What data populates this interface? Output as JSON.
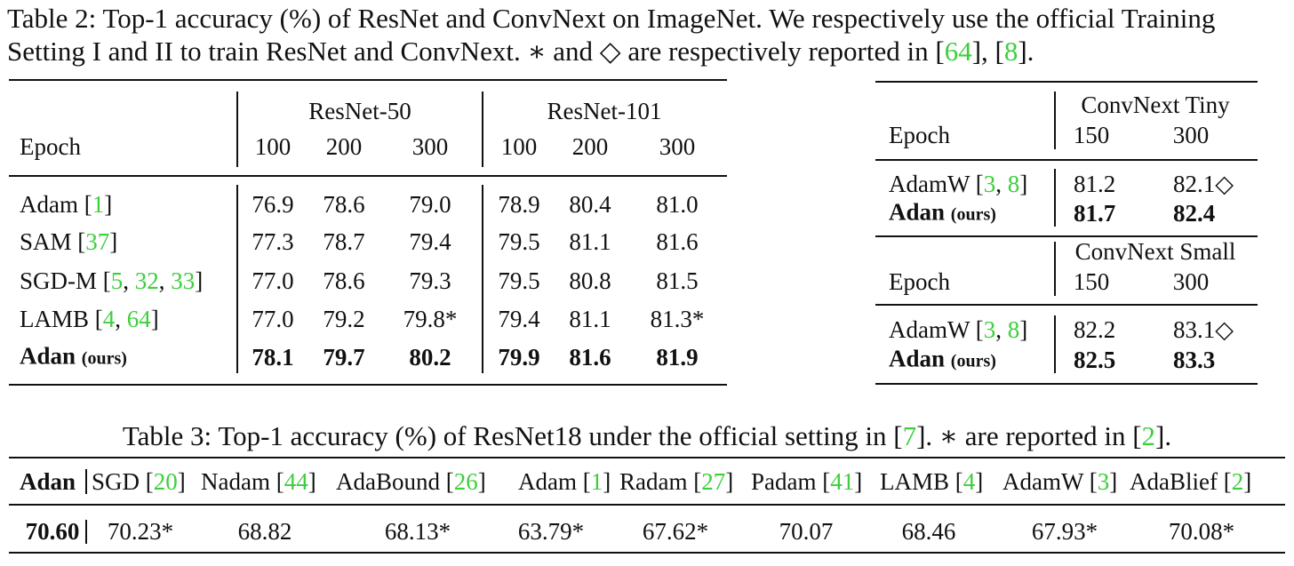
{
  "table2": {
    "caption": [
      {
        "text": "Table 2: Top-1 accuracy (%) of ResNet and ConvNext on ImageNet. We respectively use the official Training Setting I and II to train ResNet and ConvNext. ∗ and ◇ are respectively reported in ["
      },
      {
        "cite": "64"
      },
      {
        "text": "], ["
      },
      {
        "cite": "8"
      },
      {
        "text": "]."
      }
    ],
    "resnet": {
      "epoch_label": "Epoch",
      "groups": [
        {
          "name": "ResNet-50",
          "epochs": [
            "100",
            "200",
            "300"
          ]
        },
        {
          "name": "ResNet-101",
          "epochs": [
            "100",
            "200",
            "300"
          ]
        }
      ],
      "rows": [
        {
          "label": [
            {
              "text": "Adam ["
            },
            {
              "cite": "1"
            },
            {
              "text": "]"
            }
          ],
          "bold": false,
          "values": [
            "76.9",
            "78.6",
            "79.0",
            "78.9",
            "80.4",
            "81.0"
          ]
        },
        {
          "label": [
            {
              "text": "SAM ["
            },
            {
              "cite": "37"
            },
            {
              "text": "]"
            }
          ],
          "bold": false,
          "values": [
            "77.3",
            "78.7",
            "79.4",
            "79.5",
            "81.1",
            "81.6"
          ]
        },
        {
          "label": [
            {
              "text": "SGD-M ["
            },
            {
              "cite": "5"
            },
            {
              "text": ", "
            },
            {
              "cite": "32"
            },
            {
              "text": ", "
            },
            {
              "cite": "33"
            },
            {
              "text": "]"
            }
          ],
          "bold": false,
          "values": [
            "77.0",
            "78.6",
            "79.3",
            "79.5",
            "80.8",
            "81.5"
          ]
        },
        {
          "label": [
            {
              "text": "LAMB ["
            },
            {
              "cite": "4"
            },
            {
              "text": ", "
            },
            {
              "cite": "64"
            },
            {
              "text": "]"
            }
          ],
          "bold": false,
          "values": [
            "77.0",
            "79.2",
            "79.8*",
            "79.4",
            "81.1",
            "81.3*"
          ]
        },
        {
          "label": [
            {
              "text": "Adan "
            },
            {
              "small": "(ours)"
            }
          ],
          "bold": true,
          "values": [
            "78.1",
            "79.7",
            "80.2",
            "79.9",
            "81.6",
            "81.9"
          ]
        }
      ]
    },
    "convnext": {
      "blocks": [
        {
          "group": "ConvNext Tiny",
          "epoch_label": "Epoch",
          "epochs": [
            "150",
            "300"
          ],
          "rows": [
            {
              "label": [
                {
                  "text": "AdamW ["
                },
                {
                  "cite": "3"
                },
                {
                  "text": ", "
                },
                {
                  "cite": "8"
                },
                {
                  "text": "]"
                }
              ],
              "bold": false,
              "values": [
                "81.2",
                "82.1◇"
              ]
            },
            {
              "label": [
                {
                  "text": "Adan "
                },
                {
                  "small": "(ours)"
                }
              ],
              "bold": true,
              "values": [
                "81.7",
                "82.4"
              ]
            }
          ]
        },
        {
          "group": "ConvNext Small",
          "epoch_label": "Epoch",
          "epochs": [
            "150",
            "300"
          ],
          "rows": [
            {
              "label": [
                {
                  "text": "AdamW ["
                },
                {
                  "cite": "3"
                },
                {
                  "text": ", "
                },
                {
                  "cite": "8"
                },
                {
                  "text": "]"
                }
              ],
              "bold": false,
              "values": [
                "82.2",
                "83.1◇"
              ]
            },
            {
              "label": [
                {
                  "text": "Adan "
                },
                {
                  "small": "(ours)"
                }
              ],
              "bold": true,
              "values": [
                "82.5",
                "83.3"
              ]
            }
          ]
        }
      ]
    }
  },
  "table3": {
    "caption": [
      {
        "text": "Table 3: Top-1 accuracy (%) of ResNet18 under the official setting in ["
      },
      {
        "cite": "7"
      },
      {
        "text": "]. ∗ are reported in ["
      },
      {
        "cite": "2"
      },
      {
        "text": "]."
      }
    ],
    "columns": [
      {
        "label": [
          {
            "text": "Adan"
          }
        ],
        "value": "70.60",
        "bold": true
      },
      {
        "label": [
          {
            "text": "SGD ["
          },
          {
            "cite": "20"
          },
          {
            "text": "]"
          }
        ],
        "value": "70.23*",
        "bold": false
      },
      {
        "label": [
          {
            "text": "Nadam ["
          },
          {
            "cite": "44"
          },
          {
            "text": "]"
          }
        ],
        "value": "68.82",
        "bold": false
      },
      {
        "label": [
          {
            "text": "AdaBound ["
          },
          {
            "cite": "26"
          },
          {
            "text": "]"
          }
        ],
        "value": "68.13*",
        "bold": false
      },
      {
        "label": [
          {
            "text": "Adam ["
          },
          {
            "cite": "1"
          },
          {
            "text": "]"
          }
        ],
        "value": "63.79*",
        "bold": false
      },
      {
        "label": [
          {
            "text": "Radam ["
          },
          {
            "cite": "27"
          },
          {
            "text": "]"
          }
        ],
        "value": "67.62*",
        "bold": false
      },
      {
        "label": [
          {
            "text": "Padam ["
          },
          {
            "cite": "41"
          },
          {
            "text": "]"
          }
        ],
        "value": "70.07",
        "bold": false
      },
      {
        "label": [
          {
            "text": "LAMB ["
          },
          {
            "cite": "4"
          },
          {
            "text": "]"
          }
        ],
        "value": "68.46",
        "bold": false
      },
      {
        "label": [
          {
            "text": "AdamW ["
          },
          {
            "cite": "3"
          },
          {
            "text": "]"
          }
        ],
        "value": "67.93*",
        "bold": false
      },
      {
        "label": [
          {
            "text": "AdaBlief ["
          },
          {
            "cite": "2"
          },
          {
            "text": "]"
          }
        ],
        "value": "70.08*",
        "bold": false
      }
    ]
  }
}
